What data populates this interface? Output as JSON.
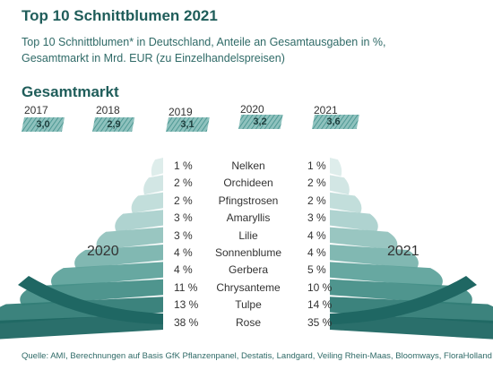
{
  "header": {
    "title": "Top 10 Schnittblumen 2021",
    "subtitle_line1": "Top 10 Schnittblumen* in Deutschland, Anteile an Gesamtausgaben in %,",
    "subtitle_line2": "Gesamtmarkt in Mrd. EUR (zu Einzelhandelspreisen)"
  },
  "footer": {
    "source": "Quelle: AMI, Berechnungen auf Basis GfK Pflanzenpanel, Destatis, Landgard, Veiling Rhein-Maas, Bloomways, FloraHolland"
  },
  "colors": {
    "dark_teal": "#1f5d5a",
    "mid_teal": "#3f8f8a",
    "light_teal": "#8fc2be",
    "pale_teal": "#cfe5e3"
  },
  "chart_data": [
    {
      "type": "bar",
      "title": "Gesamtmarkt",
      "categories": [
        "2017",
        "2018",
        "2019",
        "2020",
        "2021"
      ],
      "values": [
        3.0,
        2.9,
        3.1,
        3.2,
        3.6
      ],
      "value_labels": [
        "3,0",
        "2,9",
        "3,1",
        "3,2",
        "3,6"
      ]
    },
    {
      "type": "bar",
      "categories": [
        "Nelken",
        "Orchideen",
        "Pfingstrosen",
        "Amaryllis",
        "Lilie",
        "Sonnenblume",
        "Gerbera",
        "Chrysanteme",
        "Tulpe",
        "Rose"
      ],
      "series": [
        {
          "name": "2020",
          "values": [
            1,
            2,
            2,
            3,
            3,
            4,
            4,
            11,
            13,
            38
          ],
          "labels": [
            "1 %",
            "2 %",
            "2 %",
            "3 %",
            "3 %",
            "4 %",
            "4 %",
            "11 %",
            "13 %",
            "38 %"
          ]
        },
        {
          "name": "2021",
          "values": [
            1,
            2,
            2,
            3,
            4,
            4,
            5,
            10,
            14,
            35
          ],
          "labels": [
            "1 %",
            "2 %",
            "2 %",
            "3 %",
            "4 %",
            "4 %",
            "5 %",
            "10 %",
            "14 %",
            "35 %"
          ]
        }
      ]
    }
  ]
}
